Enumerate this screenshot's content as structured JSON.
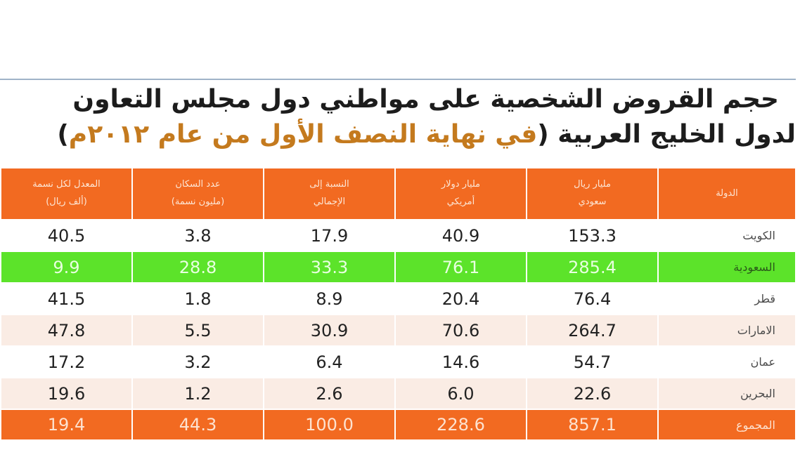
{
  "title": {
    "line1": "حجم القروض الشخصية على مواطني دول مجلس التعاون",
    "line2_prefix": "لدول الخليج العربية (",
    "line2_accent": "في نهاية النصف الأول من عام ٢٠١٢م",
    "line2_suffix": ")"
  },
  "table": {
    "headers": [
      {
        "line1": "الدولة",
        "line2": ""
      },
      {
        "line1": "مليار ريال",
        "line2": "سعودي"
      },
      {
        "line1": "مليار دولار",
        "line2": "أمريكي"
      },
      {
        "line1": "النسبة إلى",
        "line2": "الإجمالي"
      },
      {
        "line1": "عدد السكان",
        "line2": "(مليون نسمة)"
      },
      {
        "line1": "المعدل لكل نسمة",
        "line2": "(ألف ريال)"
      }
    ],
    "rows": [
      {
        "country": "الكويت",
        "sar_bn": "153.3",
        "usd_bn": "40.9",
        "share": "17.9",
        "population": "3.8",
        "per_capita": "40.5",
        "style": "white"
      },
      {
        "country": "السعودية",
        "sar_bn": "285.4",
        "usd_bn": "76.1",
        "share": "33.3",
        "population": "28.8",
        "per_capita": "9.9",
        "style": "green"
      },
      {
        "country": "قطر",
        "sar_bn": "76.4",
        "usd_bn": "20.4",
        "share": "8.9",
        "population": "1.8",
        "per_capita": "41.5",
        "style": "white"
      },
      {
        "country": "الامارات",
        "sar_bn": "264.7",
        "usd_bn": "70.6",
        "share": "30.9",
        "population": "5.5",
        "per_capita": "47.8",
        "style": "beige"
      },
      {
        "country": "عمان",
        "sar_bn": "54.7",
        "usd_bn": "14.6",
        "share": "6.4",
        "population": "3.2",
        "per_capita": "17.2",
        "style": "white"
      },
      {
        "country": "البحرين",
        "sar_bn": "22.6",
        "usd_bn": "6.0",
        "share": "2.6",
        "population": "1.2",
        "per_capita": "19.6",
        "style": "beige"
      }
    ],
    "total": {
      "country": "المجموع",
      "sar_bn": "857.1",
      "usd_bn": "228.6",
      "share": "100.0",
      "population": "44.3",
      "per_capita": "19.4"
    }
  },
  "colors": {
    "header_bg": "#f26a21",
    "highlight_row": "#5ce32a",
    "alt_row": "#faece4",
    "title_accent": "#c47a1e"
  }
}
